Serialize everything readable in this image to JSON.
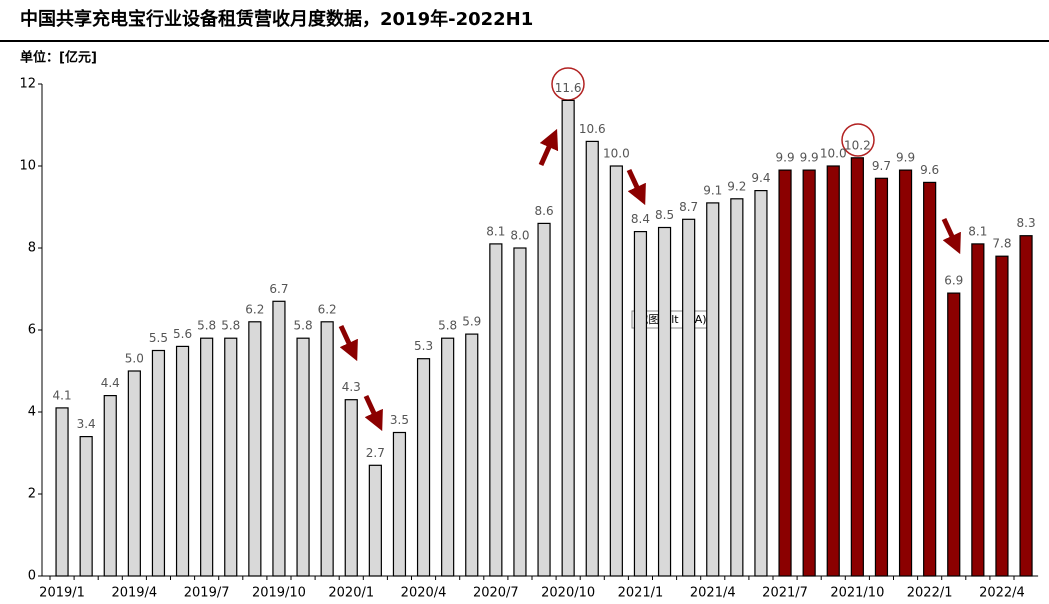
{
  "chart_data": {
    "type": "bar",
    "title": "中国共享充电宝行业设备租赁营收月度数据，2019年-2022H1",
    "unit_label": "单位：[亿元]",
    "annotation": "截图(Alt + A)",
    "categories": [
      "2019/1",
      null,
      null,
      "2019/4",
      null,
      null,
      "2019/7",
      null,
      null,
      "2019/10",
      null,
      null,
      "2020/1",
      null,
      null,
      "2020/4",
      null,
      null,
      "2020/7",
      null,
      null,
      "2020/10",
      null,
      null,
      "2021/1",
      null,
      null,
      "2021/4",
      null,
      null,
      "2021/7",
      null,
      null,
      "2021/10",
      null,
      null,
      "2022/1",
      null,
      null,
      "2022/4",
      null
    ],
    "values": [
      4.1,
      3.4,
      4.4,
      5.0,
      5.5,
      5.6,
      5.8,
      5.8,
      6.2,
      6.7,
      5.8,
      6.2,
      4.3,
      2.7,
      3.5,
      5.3,
      5.8,
      5.9,
      8.1,
      8.0,
      8.6,
      11.6,
      10.6,
      10.0,
      8.4,
      8.5,
      8.7,
      9.1,
      9.2,
      9.4,
      9.9,
      9.9,
      10.0,
      10.2,
      9.7,
      9.9,
      9.6,
      6.9,
      8.1,
      7.8,
      8.3
    ],
    "value_labels": [
      "4.1",
      "3.4",
      "4.4",
      "5.0",
      "5.5",
      "5.6",
      "5.8",
      "5.8",
      "6.2",
      "6.7",
      "5.8",
      "6.2",
      "4.3",
      "2.7",
      "3.5",
      "5.3",
      "5.8",
      "5.9",
      "8.1",
      "8.0",
      "8.6",
      "11.6",
      "10.6",
      "10.0",
      "8.4",
      "8.5",
      "8.7",
      "9.1",
      "9.2",
      "9.4",
      "9.9",
      "9.9",
      "10.0",
      "10.2",
      "9.7",
      "9.9",
      "9.6",
      "6.9",
      "8.1",
      "7.8",
      "8.3"
    ],
    "colors": [
      "#d9d9d9",
      "#d9d9d9",
      "#d9d9d9",
      "#d9d9d9",
      "#d9d9d9",
      "#d9d9d9",
      "#d9d9d9",
      "#d9d9d9",
      "#d9d9d9",
      "#d9d9d9",
      "#d9d9d9",
      "#d9d9d9",
      "#d9d9d9",
      "#d9d9d9",
      "#d9d9d9",
      "#d9d9d9",
      "#d9d9d9",
      "#d9d9d9",
      "#d9d9d9",
      "#d9d9d9",
      "#d9d9d9",
      "#d9d9d9",
      "#d9d9d9",
      "#d9d9d9",
      "#d9d9d9",
      "#d9d9d9",
      "#d9d9d9",
      "#d9d9d9",
      "#d9d9d9",
      "#d9d9d9",
      "#8b0000",
      "#8b0000",
      "#8b0000",
      "#8b0000",
      "#8b0000",
      "#8b0000",
      "#8b0000",
      "#8b0000",
      "#8b0000",
      "#8b0000",
      "#8b0000"
    ],
    "ylim": [
      0,
      12
    ],
    "yticks": [
      0,
      2,
      4,
      6,
      8,
      10,
      12
    ],
    "grid": false
  }
}
